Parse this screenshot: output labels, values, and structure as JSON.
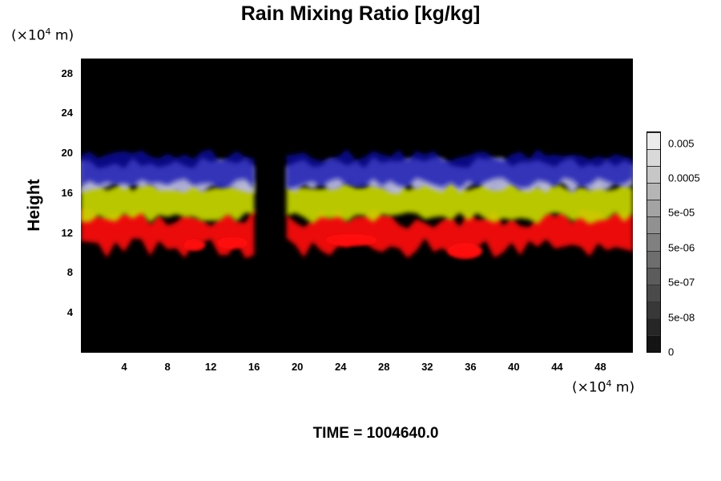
{
  "title": "Rain Mixing Ratio [kg/kg]",
  "y_unit": {
    "prefix": "(×10",
    "exp": "4",
    "suffix": " m)"
  },
  "x_unit": {
    "prefix": "(×10",
    "exp": "4",
    "suffix": " m)"
  },
  "time_label": "TIME = 1004640.0",
  "chart_data": {
    "type": "heatmap",
    "title": "Rain Mixing Ratio [kg/kg]",
    "ylabel": "Height",
    "xlabel": "",
    "x_unit": "×10^4 m",
    "y_unit": "×10^4 m",
    "xlim": [
      0,
      51
    ],
    "ylim": [
      0,
      29.5
    ],
    "x_ticks": [
      "4",
      "8",
      "12",
      "16",
      "20",
      "24",
      "28",
      "32",
      "36",
      "40",
      "44",
      "48"
    ],
    "y_ticks": [
      "4",
      "8",
      "12",
      "16",
      "20",
      "24",
      "28"
    ],
    "colorbar": {
      "labels": [
        "0.005",
        "0.0005",
        "5e-05",
        "5e-06",
        "5e-07",
        "5e-08",
        "0"
      ],
      "levels": [
        "0",
        "5e-08",
        "5e-07",
        "5e-06",
        "5e-05",
        "0.0005",
        "0.005"
      ],
      "segments": 13
    },
    "layers": [
      {
        "color": "#ff1010",
        "bottom_height": 10.5,
        "top_height": 13.5
      },
      {
        "color": "#c8d800",
        "bottom_height": 13.5,
        "top_height": 16.8
      },
      {
        "color": "#b8b8e8",
        "bottom_height": 16.5,
        "top_height": 19.0
      },
      {
        "color": "#1010b0",
        "bottom_height": 17.0,
        "top_height": 19.8
      }
    ],
    "gap_x": [
      16.5,
      19.0
    ]
  }
}
